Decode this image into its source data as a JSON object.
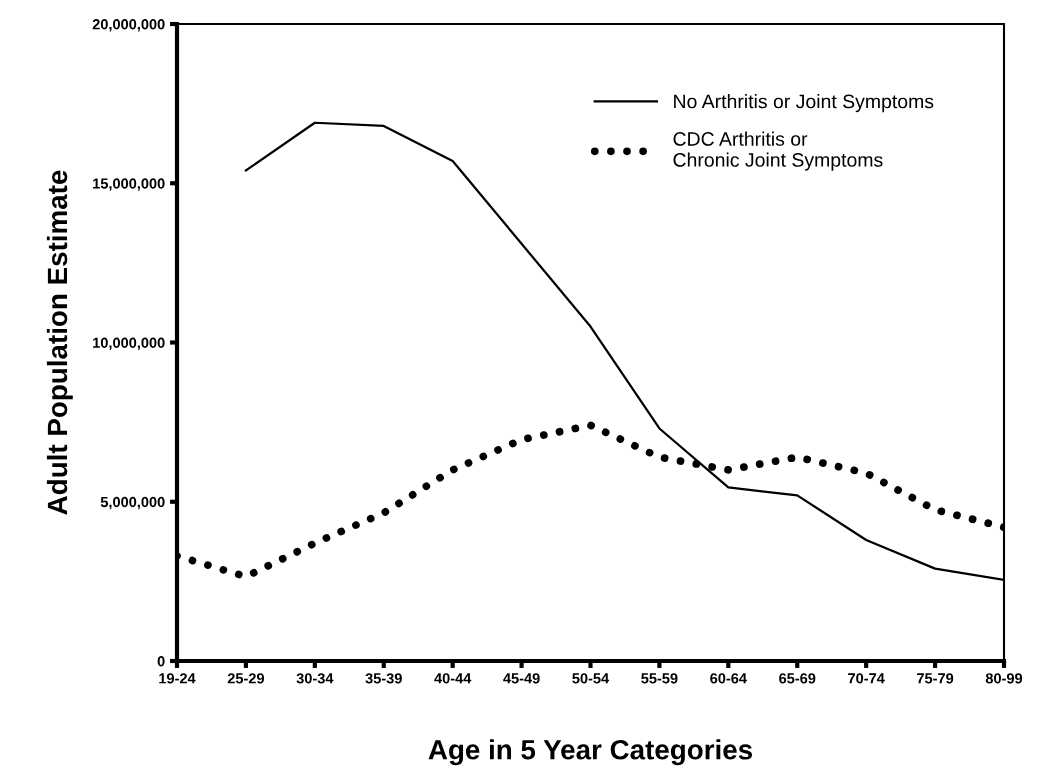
{
  "chart_data": {
    "type": "line",
    "xlabel": "Age in 5 Year Categories",
    "ylabel": "Adult Population Estimate",
    "categories": [
      "19-24",
      "25-29",
      "30-34",
      "35-39",
      "40-44",
      "45-49",
      "50-54",
      "55-59",
      "60-64",
      "65-69",
      "70-74",
      "75-79",
      "80-99"
    ],
    "series": [
      {
        "name": "No Arthritis or Joint Symptoms",
        "color": "#000000",
        "line_style": "solid",
        "values": [
          null,
          15400000,
          16900000,
          16800000,
          15700000,
          13100000,
          10500000,
          7300000,
          5450000,
          5200000,
          3800000,
          2900000,
          2550000
        ]
      },
      {
        "name": "CDC Arthritis or\nChronic Joint Symptoms",
        "color": "#000000",
        "line_style": "dotted",
        "values": [
          3300000,
          2650000,
          3700000,
          4650000,
          6000000,
          6950000,
          7400000,
          6400000,
          6000000,
          6400000,
          5900000,
          4750000,
          4200000
        ]
      }
    ],
    "ylim": [
      0,
      20000000
    ],
    "yticks": [
      {
        "value": 0,
        "label": "0"
      },
      {
        "value": 5000000,
        "label": "5,000,000"
      },
      {
        "value": 10000000,
        "label": "10,000,000"
      },
      {
        "value": 15000000,
        "label": "15,000,000"
      },
      {
        "value": 20000000,
        "label": "20,000,000"
      }
    ],
    "grid": false,
    "legend": "top right",
    "marker": "none"
  }
}
